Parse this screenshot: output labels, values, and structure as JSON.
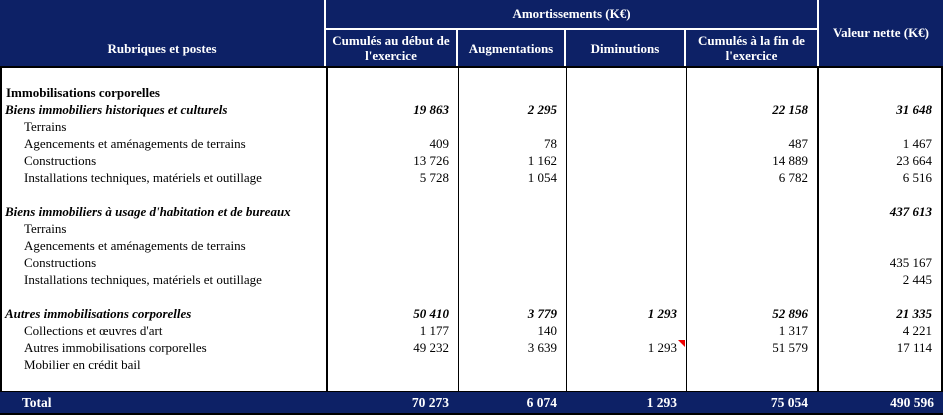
{
  "colors": {
    "header_bg": "#0d2166",
    "header_text": "#ffffff",
    "body_text": "#000000",
    "comment_marker": "#ee0000"
  },
  "table": {
    "header": {
      "rubriques": "Rubriques et postes",
      "group": "Amortissements (K€)",
      "sub": [
        "Cumulés au début de l'exercice",
        "Augmentations",
        "Diminutions",
        "Cumulés à la fin de l'exercice"
      ],
      "valeur_nette": "Valeur nette (K€)"
    },
    "columns": [
      "Rubriques et postes",
      "Cumulés au début de l'exercice",
      "Augmentations",
      "Diminutions",
      "Cumulés à la fin de l'exercice",
      "Valeur nette (K€)"
    ],
    "rows": [
      {
        "label": "",
        "style": "blank",
        "values": [
          "",
          "",
          "",
          "",
          ""
        ]
      },
      {
        "label": "Immobilisations corporelles",
        "style": "bold",
        "values": [
          "",
          "",
          "",
          "",
          ""
        ]
      },
      {
        "label": "Biens immobiliers historiques et culturels",
        "style": "bolditalic",
        "values": [
          "19 863",
          "2 295",
          "",
          "22 158",
          "31 648"
        ]
      },
      {
        "label": "Terrains",
        "style": "item",
        "values": [
          "",
          "",
          "",
          "",
          ""
        ]
      },
      {
        "label": "Agencements et aménagements de terrains",
        "style": "item",
        "values": [
          "409",
          "78",
          "",
          "487",
          "1 467"
        ]
      },
      {
        "label": "Constructions",
        "style": "item",
        "values": [
          "13 726",
          "1 162",
          "",
          "14 889",
          "23 664"
        ]
      },
      {
        "label": "Installations techniques, matériels et outillage",
        "style": "item",
        "values": [
          "5 728",
          "1 054",
          "",
          "6 782",
          "6 516"
        ]
      },
      {
        "label": "",
        "style": "blank",
        "values": [
          "",
          "",
          "",
          "",
          ""
        ]
      },
      {
        "label": "Biens immobiliers à usage d'habitation et de bureaux",
        "style": "bolditalic",
        "values": [
          "",
          "",
          "",
          "",
          "437 613"
        ]
      },
      {
        "label": "Terrains",
        "style": "item",
        "values": [
          "",
          "",
          "",
          "",
          ""
        ]
      },
      {
        "label": "Agencements et aménagements de terrains",
        "style": "item",
        "values": [
          "",
          "",
          "",
          "",
          ""
        ]
      },
      {
        "label": "Constructions",
        "style": "item",
        "values": [
          "",
          "",
          "",
          "",
          "435 167"
        ]
      },
      {
        "label": "Installations techniques, matériels et outillage",
        "style": "item",
        "values": [
          "",
          "",
          "",
          "",
          "2 445"
        ]
      },
      {
        "label": "",
        "style": "blank",
        "values": [
          "",
          "",
          "",
          "",
          ""
        ]
      },
      {
        "label": "Autres immobilisations corporelles",
        "style": "bolditalic",
        "values": [
          "50 410",
          "3 779",
          "1 293",
          "52 896",
          "21 335"
        ]
      },
      {
        "label": "Collections et œuvres d'art",
        "style": "item",
        "values": [
          "1 177",
          "140",
          "",
          "1 317",
          "4 221"
        ]
      },
      {
        "label": "Autres immobilisations corporelles",
        "style": "item",
        "values": [
          "49 232",
          "3 639",
          "1 293",
          "51 579",
          "17 114"
        ],
        "comment_marker_col": 2
      },
      {
        "label": "Mobilier en crédit bail",
        "style": "item",
        "values": [
          "",
          "",
          "",
          "",
          ""
        ]
      },
      {
        "label": "",
        "style": "blank",
        "values": [
          "",
          "",
          "",
          "",
          ""
        ]
      }
    ],
    "total": {
      "label": "Total",
      "values": [
        "70 273",
        "6 074",
        "1 293",
        "75 054",
        "490 596"
      ]
    }
  }
}
